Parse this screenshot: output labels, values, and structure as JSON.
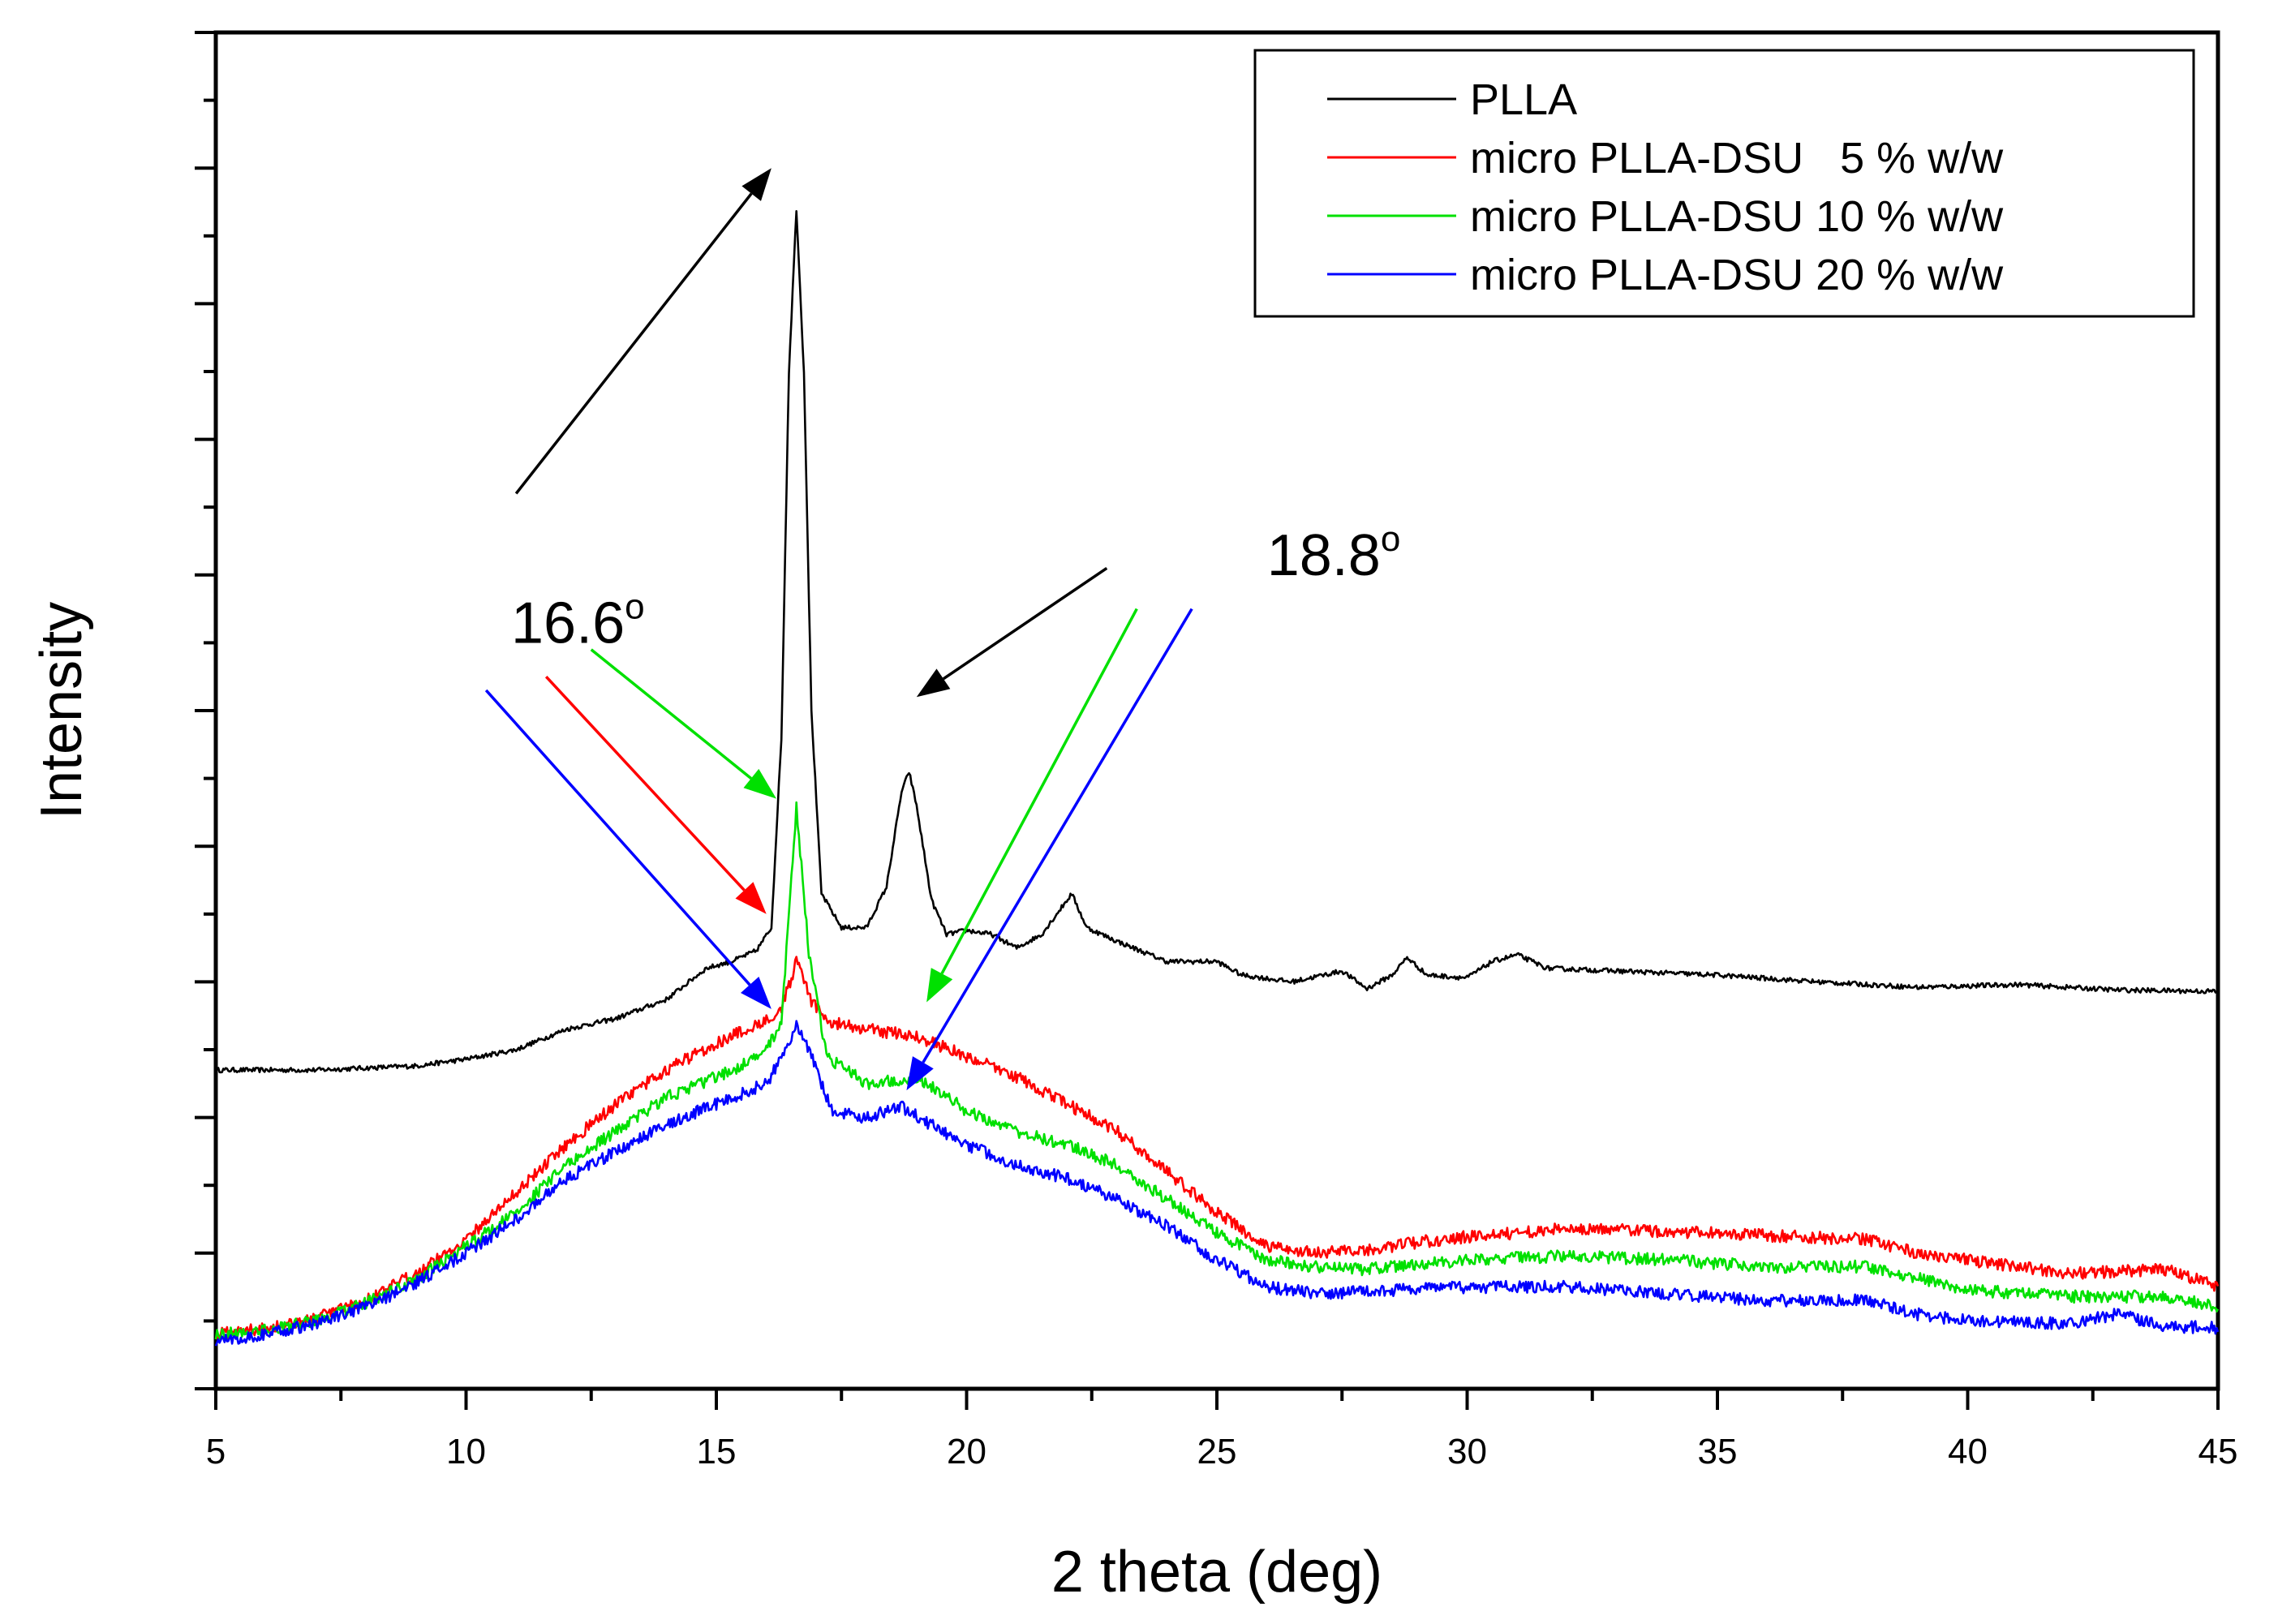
{
  "chart_data": {
    "type": "line",
    "xlabel": "2 theta (deg)",
    "ylabel": "Intensity",
    "xlim": [
      5,
      45
    ],
    "ylim": [
      0,
      100
    ],
    "x_ticks": [
      5,
      10,
      15,
      20,
      25,
      30,
      35,
      40,
      45
    ],
    "x_tick_labels": [
      "5",
      "10",
      "15",
      "20",
      "25",
      "30",
      "35",
      "40",
      "45"
    ],
    "y_tick_labels_shown": false,
    "grid": false,
    "legend_position": "top-right",
    "series": [
      {
        "name": "PLLA",
        "color": "#000000",
        "points": [
          [
            5,
            23.5
          ],
          [
            7,
            23.5
          ],
          [
            9,
            23.8
          ],
          [
            10,
            24.3
          ],
          [
            11,
            25.0
          ],
          [
            12,
            26.5
          ],
          [
            13,
            27.3
          ],
          [
            14,
            28.7
          ],
          [
            14.8,
            31.0
          ],
          [
            15.3,
            31.5
          ],
          [
            15.8,
            32.3
          ],
          [
            16.1,
            34.0
          ],
          [
            16.3,
            48.0
          ],
          [
            16.45,
            75.0
          ],
          [
            16.6,
            87.0
          ],
          [
            16.75,
            75.0
          ],
          [
            16.9,
            50.0
          ],
          [
            17.1,
            36.5
          ],
          [
            17.5,
            34.0
          ],
          [
            18.0,
            34.0
          ],
          [
            18.4,
            37.0
          ],
          [
            18.7,
            44.0
          ],
          [
            18.85,
            45.5
          ],
          [
            19.0,
            43.0
          ],
          [
            19.3,
            36.0
          ],
          [
            19.6,
            33.5
          ],
          [
            20.0,
            33.8
          ],
          [
            20.5,
            33.5
          ],
          [
            21.0,
            32.5
          ],
          [
            21.5,
            33.5
          ],
          [
            21.9,
            35.5
          ],
          [
            22.1,
            36.5
          ],
          [
            22.4,
            34.0
          ],
          [
            23.0,
            33.0
          ],
          [
            24.0,
            31.5
          ],
          [
            25.0,
            31.5
          ],
          [
            25.5,
            30.5
          ],
          [
            26.5,
            30.0
          ],
          [
            27.5,
            30.8
          ],
          [
            28.0,
            29.5
          ],
          [
            28.5,
            30.5
          ],
          [
            28.8,
            31.8
          ],
          [
            29.2,
            30.5
          ],
          [
            30.0,
            30.3
          ],
          [
            30.5,
            31.5
          ],
          [
            31.0,
            32.0
          ],
          [
            31.6,
            31.0
          ],
          [
            33.0,
            30.8
          ],
          [
            35.0,
            30.5
          ],
          [
            37.0,
            30.0
          ],
          [
            39.0,
            29.6
          ],
          [
            41.0,
            29.8
          ],
          [
            43.0,
            29.4
          ],
          [
            45.0,
            29.3
          ]
        ]
      },
      {
        "name": "micro PLLA-DSU   5 % w/w",
        "color": "#ff0000",
        "points": [
          [
            5,
            4.0
          ],
          [
            6,
            4.5
          ],
          [
            7,
            5.2
          ],
          [
            8,
            6.5
          ],
          [
            9,
            8.5
          ],
          [
            10,
            11.0
          ],
          [
            11,
            14.5
          ],
          [
            12,
            18.0
          ],
          [
            13,
            21.0
          ],
          [
            14,
            23.5
          ],
          [
            15,
            25.5
          ],
          [
            15.8,
            26.8
          ],
          [
            16.3,
            28.0
          ],
          [
            16.6,
            31.5
          ],
          [
            16.9,
            28.5
          ],
          [
            17.3,
            27.0
          ],
          [
            18.0,
            26.5
          ],
          [
            19.0,
            26.0
          ],
          [
            20.0,
            24.5
          ],
          [
            21.0,
            23.0
          ],
          [
            22.0,
            21.0
          ],
          [
            23.0,
            19.0
          ],
          [
            24.0,
            16.0
          ],
          [
            25.0,
            13.0
          ],
          [
            26.0,
            10.5
          ],
          [
            27.0,
            10.0
          ],
          [
            28.0,
            10.2
          ],
          [
            29.0,
            10.8
          ],
          [
            30.0,
            11.2
          ],
          [
            32.0,
            11.8
          ],
          [
            34.0,
            11.6
          ],
          [
            36.0,
            11.3
          ],
          [
            38.0,
            11.0
          ],
          [
            39.0,
            10.0
          ],
          [
            40.0,
            9.5
          ],
          [
            42.0,
            8.5
          ],
          [
            44.0,
            8.8
          ],
          [
            45.0,
            7.5
          ]
        ]
      },
      {
        "name": "micro PLLA-DSU 10 % w/w",
        "color": "#00e000",
        "points": [
          [
            5,
            4.0
          ],
          [
            6,
            4.3
          ],
          [
            7,
            5.0
          ],
          [
            8,
            6.3
          ],
          [
            9,
            8.0
          ],
          [
            10,
            10.5
          ],
          [
            11,
            13.0
          ],
          [
            12,
            16.5
          ],
          [
            13,
            19.0
          ],
          [
            14,
            21.5
          ],
          [
            15,
            23.0
          ],
          [
            15.9,
            24.5
          ],
          [
            16.3,
            27.0
          ],
          [
            16.6,
            43.0
          ],
          [
            16.85,
            32.0
          ],
          [
            17.2,
            24.5
          ],
          [
            18.0,
            22.5
          ],
          [
            19.0,
            23.0
          ],
          [
            20.0,
            20.5
          ],
          [
            21.0,
            19.0
          ],
          [
            22.0,
            18.0
          ],
          [
            23.0,
            16.5
          ],
          [
            24.0,
            14.0
          ],
          [
            25.0,
            11.5
          ],
          [
            26.0,
            9.5
          ],
          [
            27.0,
            9.0
          ],
          [
            28.0,
            8.8
          ],
          [
            30.0,
            9.5
          ],
          [
            32.0,
            9.8
          ],
          [
            34.0,
            9.5
          ],
          [
            36.0,
            9.0
          ],
          [
            38.0,
            9.0
          ],
          [
            40.0,
            7.3
          ],
          [
            42.0,
            6.8
          ],
          [
            44.0,
            6.8
          ],
          [
            45.0,
            6.0
          ]
        ]
      },
      {
        "name": "micro PLLA-DSU 20 % w/w",
        "color": "#0000ff",
        "points": [
          [
            5,
            3.5
          ],
          [
            6,
            4.0
          ],
          [
            7,
            4.8
          ],
          [
            8,
            6.0
          ],
          [
            9,
            7.8
          ],
          [
            10,
            10.0
          ],
          [
            11,
            12.5
          ],
          [
            12,
            15.5
          ],
          [
            13,
            17.5
          ],
          [
            14,
            19.5
          ],
          [
            15,
            21.0
          ],
          [
            16.0,
            22.5
          ],
          [
            16.4,
            25.0
          ],
          [
            16.6,
            27.0
          ],
          [
            16.9,
            24.5
          ],
          [
            17.3,
            20.5
          ],
          [
            18.0,
            20.0
          ],
          [
            18.7,
            20.8
          ],
          [
            19.5,
            19.0
          ],
          [
            20.0,
            18.0
          ],
          [
            21.0,
            16.5
          ],
          [
            22.0,
            15.5
          ],
          [
            23.0,
            14.0
          ],
          [
            24.0,
            12.0
          ],
          [
            25.0,
            9.5
          ],
          [
            26.0,
            7.5
          ],
          [
            27.0,
            7.0
          ],
          [
            28.0,
            7.2
          ],
          [
            30.0,
            7.5
          ],
          [
            32.0,
            7.5
          ],
          [
            34.0,
            7.0
          ],
          [
            36.0,
            6.5
          ],
          [
            38.0,
            6.5
          ],
          [
            39.0,
            5.5
          ],
          [
            40.0,
            5.0
          ],
          [
            42.0,
            4.8
          ],
          [
            43.0,
            5.5
          ],
          [
            44.0,
            4.6
          ],
          [
            45.0,
            4.5
          ]
        ]
      }
    ],
    "annotations": [
      {
        "id": "peak-16-6",
        "text": "16.6",
        "superscript": "o",
        "x": 10.9,
        "y": 55.0
      },
      {
        "id": "peak-18-8",
        "text": "18.8",
        "superscript": "o",
        "x": 26.0,
        "y": 60.0
      }
    ],
    "arrows": [
      {
        "color": "#000000",
        "from": [
          11.0,
          66.0
        ],
        "to": [
          16.1,
          90.0
        ]
      },
      {
        "color": "#000000",
        "from": [
          22.8,
          60.5
        ],
        "to": [
          19.0,
          51.0
        ]
      },
      {
        "color": "#00e000",
        "from": [
          12.5,
          54.5
        ],
        "to": [
          16.2,
          43.5
        ]
      },
      {
        "color": "#ff0000",
        "from": [
          11.6,
          52.5
        ],
        "to": [
          16.0,
          35.0
        ]
      },
      {
        "color": "#0000ff",
        "from": [
          10.4,
          51.5
        ],
        "to": [
          16.1,
          28.0
        ]
      },
      {
        "color": "#00e000",
        "from": [
          23.4,
          57.5
        ],
        "to": [
          19.2,
          28.5
        ]
      },
      {
        "color": "#0000ff",
        "from": [
          24.5,
          57.5
        ],
        "to": [
          18.8,
          22.0
        ]
      }
    ]
  }
}
